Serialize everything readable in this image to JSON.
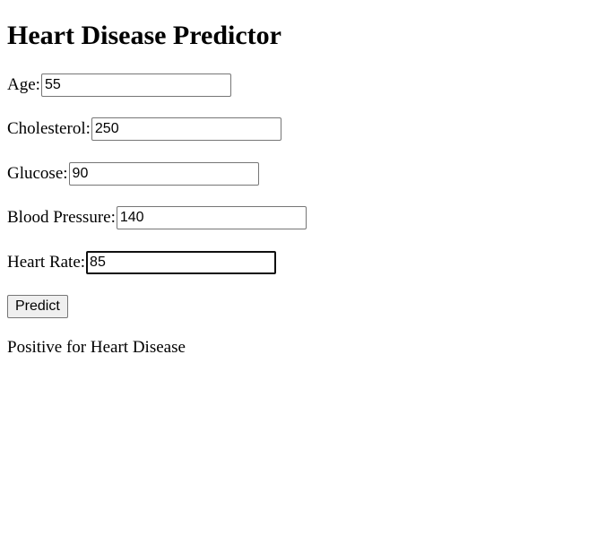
{
  "page": {
    "title": "Heart Disease Predictor"
  },
  "form": {
    "fields": [
      {
        "label": "Age:",
        "value": "55"
      },
      {
        "label": "Cholesterol:",
        "value": "250"
      },
      {
        "label": "Glucose:",
        "value": "90"
      },
      {
        "label": "Blood Pressure:",
        "value": "140"
      },
      {
        "label": "Heart Rate:",
        "value": "85"
      }
    ],
    "focused_field": "Heart Rate:",
    "predict_label": "Predict"
  },
  "result": {
    "text": "Positive for Heart Disease"
  }
}
